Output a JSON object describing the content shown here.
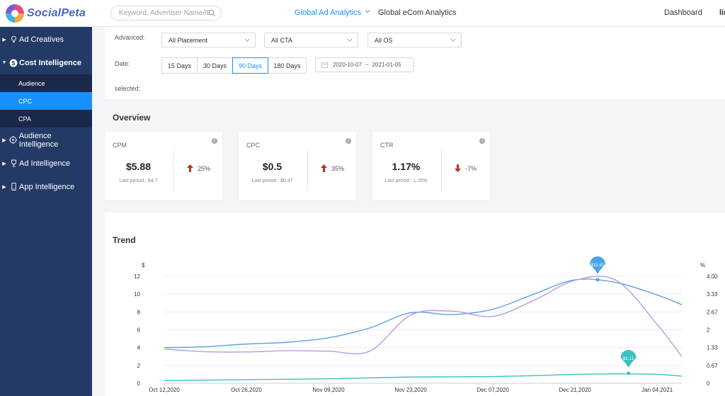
{
  "header": {
    "brand": "SocialPeta",
    "search_placeholder": "Keyword, Advertiser Name/ID",
    "nav_ad_analytics": "Global Ad Analytics",
    "nav_ecom_analytics": "Global eCom Analytics",
    "nav_dashboard": "Dashboard",
    "user_snippet": "lin",
    "accent_color": "#1890ff"
  },
  "sidebar": {
    "bg_color": "#233a66",
    "items": [
      {
        "label": "Ad Creatives",
        "icon": "bulb-icon"
      },
      {
        "label": "Cost Intelligence",
        "icon": "dollar-icon"
      },
      {
        "label": "Audience Intelligence",
        "icon": "target-icon"
      },
      {
        "label": "Ad Intelligence",
        "icon": "trophy-icon"
      },
      {
        "label": "App Intelligence",
        "icon": "phone-icon"
      }
    ],
    "submenu": [
      {
        "label": "Audience"
      },
      {
        "label": "CPC",
        "active": true
      },
      {
        "label": "CPA"
      }
    ]
  },
  "filters": {
    "advanced_label": "Advanced:",
    "placement": "All Placement",
    "cta": "All CTA",
    "os": "All OS",
    "date_label": "Date:",
    "date_options": [
      "15 Days",
      "30 Days",
      "90 Days",
      "180 Days"
    ],
    "date_active": "90 Days",
    "date_start": "2020-10-07",
    "date_sep": "~",
    "date_end": "2021-01-05",
    "selected_label": "selected:"
  },
  "overview": {
    "title": "Overview",
    "cards": [
      {
        "title": "CPM",
        "value": "$5.88",
        "last": "Last period : $4.7",
        "change": "25%",
        "direction": "up"
      },
      {
        "title": "CPC",
        "value": "$0.5",
        "last": "Last period : $0.37",
        "change": "35%",
        "direction": "up"
      },
      {
        "title": "CTR",
        "value": "1.17%",
        "last": "Last period : 1.26%",
        "change": "-7%",
        "direction": "down"
      }
    ],
    "up_color": "#c0392b",
    "down_color": "#c0392b"
  },
  "trend": {
    "title": "Trend"
  },
  "chart_data": {
    "type": "line",
    "xlabel": "",
    "ylabel_left": "$",
    "ylabel_right": "%",
    "x_ticks": [
      "Oct 12,2020",
      "Oct 26,2020",
      "Nov 09,2020",
      "Nov 23,2020",
      "Dec 07,2020",
      "Dec 21,2020",
      "Jan 04,2021"
    ],
    "y_left_ticks": [
      0,
      2,
      4,
      6,
      8,
      10,
      12
    ],
    "y_right_ticks": [
      "0",
      "0.67",
      "1.33",
      "2",
      "2.67",
      "3.33",
      "4.00"
    ],
    "ylim_left": [
      0,
      12
    ],
    "ylim_right": [
      0,
      4
    ],
    "x_index_range": [
      0,
      12.6
    ],
    "grid": true,
    "series": [
      {
        "axis": "left",
        "color": "#5ba3e0",
        "x": [
          0,
          1,
          2,
          3,
          4,
          5,
          6,
          7,
          8,
          9,
          10,
          11,
          12,
          12.6
        ],
        "values": [
          4.0,
          4.1,
          4.4,
          4.6,
          5.1,
          6.2,
          7.9,
          7.7,
          8.3,
          10.0,
          11.6,
          11.3,
          9.9,
          8.8
        ]
      },
      {
        "axis": "right",
        "color": "#b39ddb",
        "x": [
          0,
          1,
          2,
          3,
          4,
          5,
          6,
          7,
          8,
          9,
          10,
          11,
          12,
          12.6
        ],
        "values": [
          1.28,
          1.18,
          1.17,
          1.22,
          1.2,
          1.2,
          2.55,
          2.7,
          2.5,
          3.1,
          3.85,
          3.85,
          2.2,
          1.0
        ]
      },
      {
        "axis": "left",
        "color": "#3cc0c0",
        "x": [
          0,
          1,
          2,
          3,
          4,
          5,
          6,
          7,
          8,
          9,
          10,
          11,
          12,
          12.6
        ],
        "values": [
          0.3,
          0.35,
          0.4,
          0.45,
          0.5,
          0.6,
          0.7,
          0.72,
          0.75,
          0.85,
          1.0,
          1.05,
          1.0,
          0.8
        ]
      }
    ],
    "markers": [
      {
        "label": "$11.61",
        "x": 10.55,
        "y": 11.61,
        "axis": "left",
        "color": "#4aa3e8"
      },
      {
        "label": "$1.11",
        "x": 11.3,
        "y": 1.11,
        "axis": "left",
        "color": "#3cc0c0"
      }
    ]
  }
}
